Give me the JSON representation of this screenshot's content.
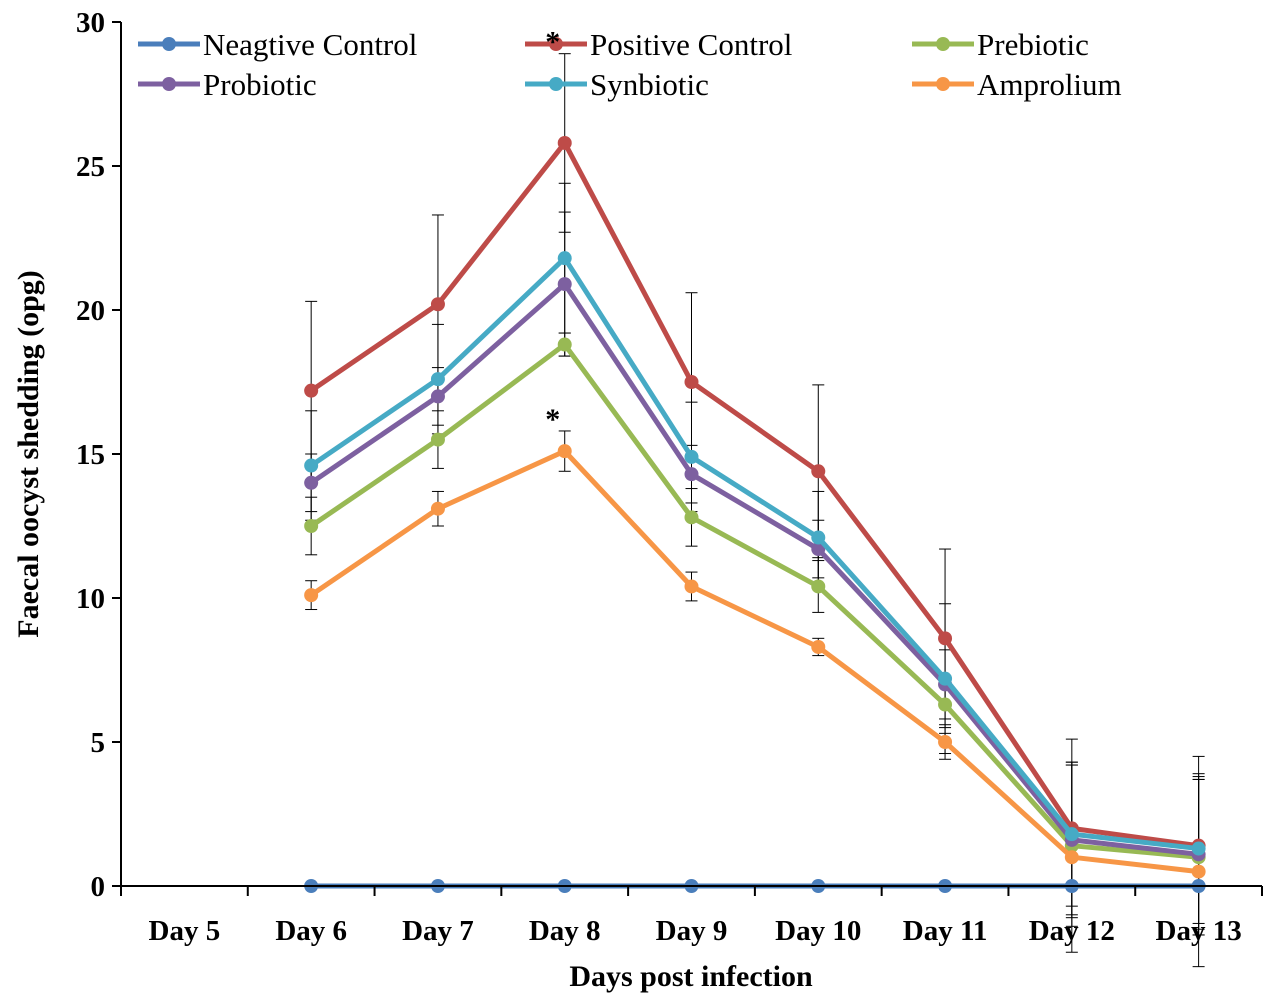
{
  "chart_data": {
    "type": "line",
    "title": "",
    "xlabel": "Days post infection",
    "ylabel": "Faecal oocyst shedding (opg)",
    "ylim": [
      0,
      30
    ],
    "yticks": [
      0,
      5,
      10,
      15,
      20,
      25,
      30
    ],
    "grid": false,
    "legend_position": "top",
    "categories": [
      "Day 5",
      "Day 6",
      "Day 7",
      "Day 8",
      "Day 9",
      "Day 10",
      "Day 11",
      "Day 12",
      "Day 13"
    ],
    "series": [
      {
        "name": "Neagtive Control",
        "color": "#4a7ebb",
        "values": [
          null,
          0,
          0,
          0,
          0,
          0,
          0,
          0,
          0
        ],
        "errors": [
          null,
          0,
          0,
          0,
          0,
          0,
          0,
          0,
          0
        ]
      },
      {
        "name": "Positive Control",
        "color": "#be4b48",
        "values": [
          null,
          17.2,
          20.2,
          25.8,
          17.5,
          14.4,
          8.6,
          2.0,
          1.4
        ],
        "errors": [
          null,
          3.1,
          3.1,
          3.1,
          3.1,
          3.0,
          3.1,
          3.1,
          3.1
        ]
      },
      {
        "name": "Prebiotic",
        "color": "#98b954",
        "values": [
          null,
          12.5,
          15.5,
          18.8,
          12.8,
          10.4,
          6.3,
          1.4,
          1.0
        ],
        "errors": [
          null,
          1.0,
          1.0,
          0.4,
          1.0,
          0.9,
          1.0,
          2.8,
          2.7
        ]
      },
      {
        "name": "Probiotic",
        "color": "#7d60a0",
        "values": [
          null,
          14.0,
          17.0,
          20.9,
          14.3,
          11.7,
          7.0,
          1.6,
          1.1
        ],
        "errors": [
          null,
          1.0,
          1.0,
          2.5,
          1.0,
          1.0,
          1.2,
          2.6,
          2.6
        ]
      },
      {
        "name": "Synbiotic",
        "color": "#46aac5",
        "values": [
          null,
          14.6,
          17.6,
          21.8,
          14.9,
          12.1,
          7.2,
          1.8,
          1.3
        ],
        "errors": [
          null,
          1.9,
          1.9,
          2.6,
          1.9,
          1.6,
          2.6,
          2.5,
          2.6
        ]
      },
      {
        "name": "Amprolium",
        "color": "#f79646",
        "values": [
          null,
          10.1,
          13.1,
          15.1,
          10.4,
          8.3,
          5.0,
          1.0,
          0.5
        ],
        "errors": [
          null,
          0.5,
          0.6,
          0.7,
          0.5,
          0.3,
          0.6,
          3.3,
          3.3
        ]
      }
    ],
    "annotations": [
      {
        "text": "*",
        "category": "Day 8",
        "series": "Positive Control"
      },
      {
        "text": "*",
        "category": "Day 8",
        "series": "Amprolium"
      }
    ]
  }
}
